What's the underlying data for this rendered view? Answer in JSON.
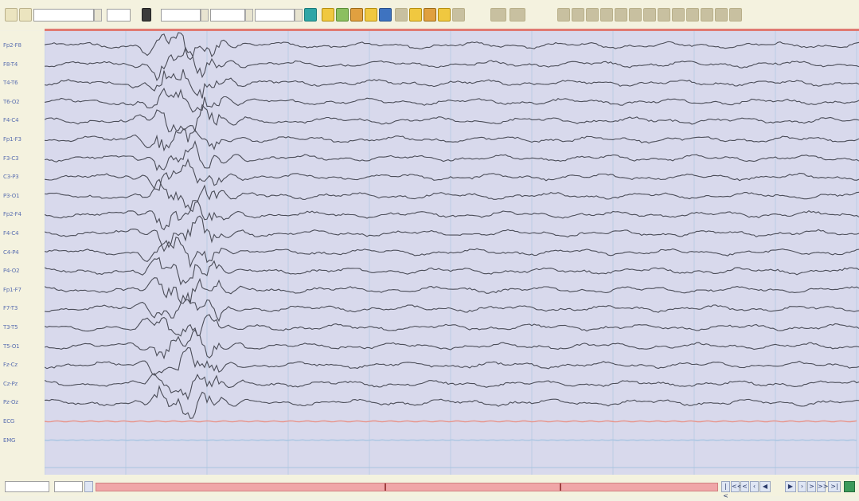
{
  "toolbar": {
    "field_values": [
      "",
      "",
      "",
      ""
    ]
  },
  "channels": {
    "labels": [
      "Fp2-F8",
      "F8-T4",
      "T4-T6",
      "T6-O2",
      "F4-C4",
      "Fp1-F3",
      "F3-C3",
      "C3-P3",
      "P3-O1",
      "Fp2-F4",
      "F4-C4",
      "C4-P4",
      "P4-O2",
      "Fp1-F7",
      "F7-T3",
      "T3-T5",
      "T5-O1",
      "Fz-Cz",
      "Cz-Pz",
      "Pz-Oz",
      "ECG",
      "EMG"
    ]
  },
  "footer": {
    "time_field": "",
    "page_field": ""
  },
  "colors": {
    "plot_bg": "#d8d9ec",
    "trace": "#4b4d58",
    "grid_red": "#e8a0a0",
    "grid_blue": "#a8c4e0",
    "topline": "#e07a72",
    "ecg_trace": "#e8948a",
    "emg_trace": "#a9c6e2"
  },
  "icons": [
    "play-icon",
    "settings-icon",
    "person-icon",
    "grid-icon",
    "montage-icon",
    "filter-icon",
    "marker-icon",
    "pencil-icon",
    "zoom-icon",
    "ruler-icon",
    "print-icon",
    "first-page-icon",
    "prev-page-icon",
    "next-page-icon",
    "last-page-icon"
  ]
}
